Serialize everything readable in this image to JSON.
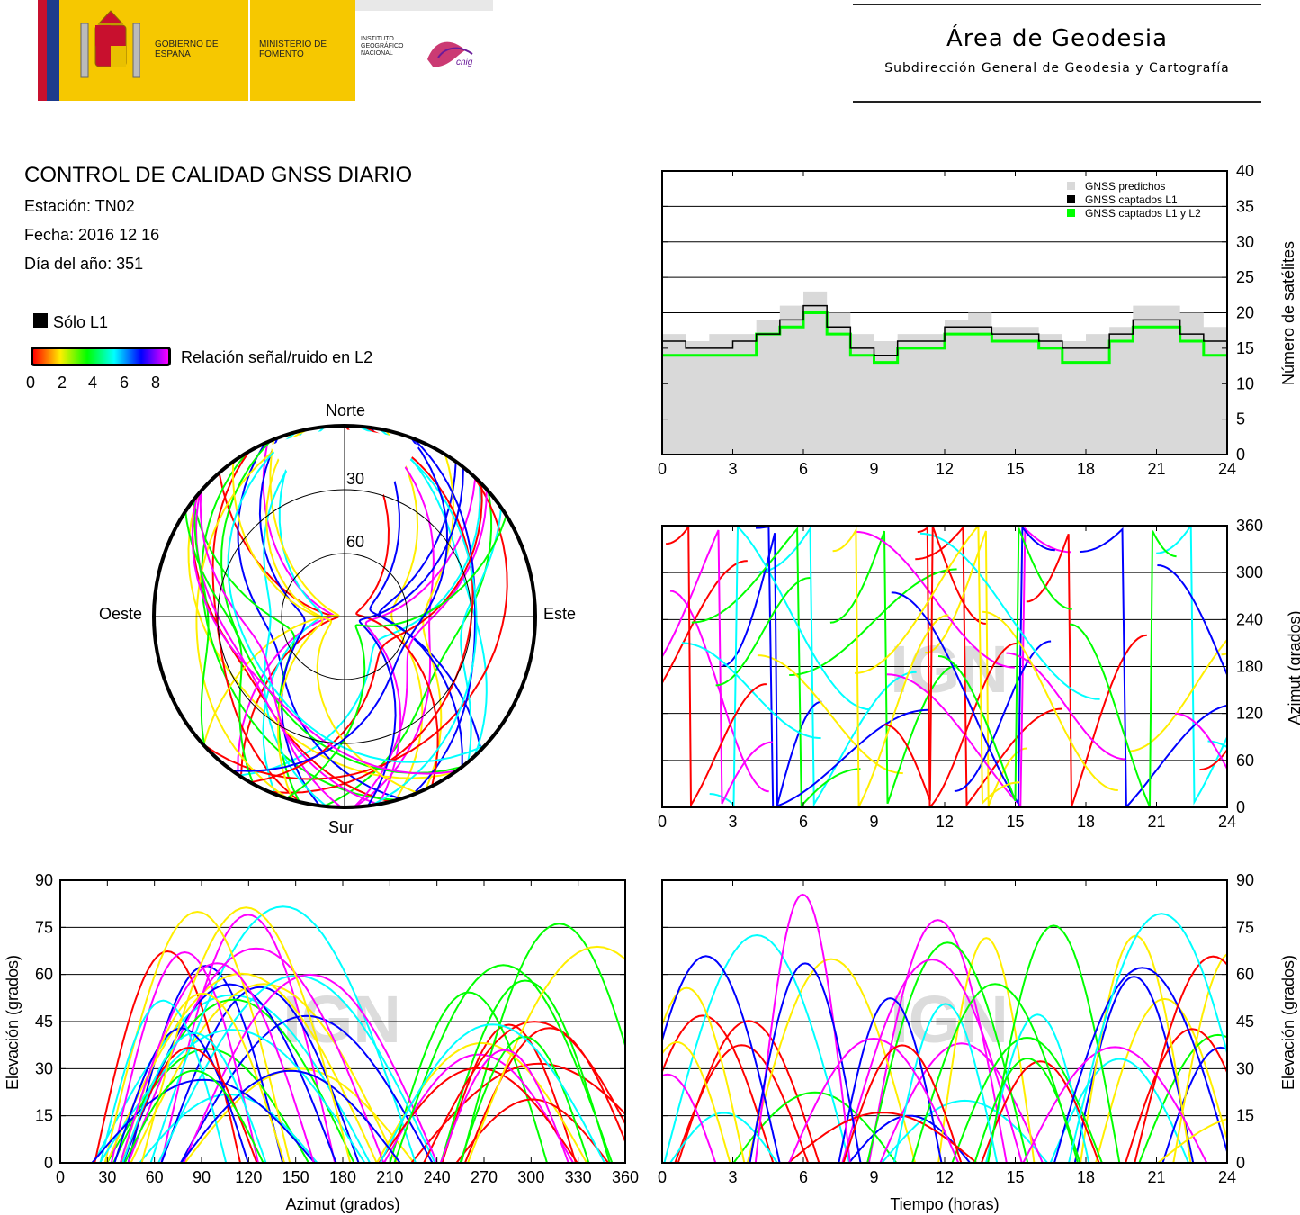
{
  "header": {
    "logo_gobierno": "GOBIERNO DE ESPAÑA",
    "logo_ministerio": "MINISTERIO DE FOMENTO",
    "logo_instituto": "INSTITUTO GEOGRÁFICO NACIONAL",
    "logo_cnig": "cnig",
    "area_title": "Área de Geodesia",
    "area_subtitle": "Subdirección General de Geodesia y Cartografía"
  },
  "report": {
    "title": "CONTROL DE CALIDAD GNSS DIARIO",
    "station": "Estación: TN02",
    "date": "Fecha: 2016 12 16",
    "doy": "Día del año: 351"
  },
  "legend": {
    "solo_l1": "Sólo L1",
    "snr_label": "Relación señal/ruido en L2",
    "snr_ticks": [
      "0",
      "2",
      "4",
      "6",
      "8"
    ]
  },
  "watermark": "IGN",
  "colors": {
    "predicted": "#d9d9d9",
    "captured_l1": "#000000",
    "captured_l1_l2": "#00ff00",
    "snr_scale": [
      "#ff0000",
      "#ffee00",
      "#00ff00",
      "#00ffff",
      "#0000ff",
      "#ff00ff"
    ]
  },
  "chart_data": [
    {
      "type": "polar-skyplot",
      "labels": {
        "north": "Norte",
        "south": "Sur",
        "east": "Este",
        "west": "Oeste"
      },
      "rings": [
        "30",
        "60"
      ]
    },
    {
      "type": "step-area",
      "ylabel": "Número de satélites",
      "xlim": [
        0,
        24
      ],
      "ylim": [
        0,
        40
      ],
      "xticks": [
        "0",
        "3",
        "6",
        "9",
        "12",
        "15",
        "18",
        "21",
        "24"
      ],
      "yticks": [
        "0",
        "5",
        "10",
        "15",
        "20",
        "25",
        "30",
        "35",
        "40"
      ],
      "legend_entries": [
        "GNSS predichos",
        "GNSS captados L1",
        "GNSS captados L1 y L2"
      ],
      "legend_position": "top-right",
      "x": [
        0,
        1,
        2,
        3,
        4,
        5,
        6,
        7,
        8,
        9,
        10,
        11,
        12,
        13,
        14,
        15,
        16,
        17,
        18,
        19,
        20,
        21,
        22,
        23,
        24
      ],
      "series": [
        {
          "name": "GNSS predichos",
          "values": [
            17,
            16,
            17,
            17,
            19,
            21,
            23,
            20,
            17,
            16,
            17,
            17,
            19,
            20,
            18,
            18,
            17,
            16,
            17,
            18,
            21,
            21,
            20,
            18,
            17
          ]
        },
        {
          "name": "GNSS captados L1",
          "values": [
            16,
            15,
            15,
            16,
            17,
            19,
            21,
            18,
            15,
            14,
            16,
            16,
            18,
            18,
            17,
            17,
            16,
            15,
            15,
            17,
            19,
            19,
            17,
            16,
            16
          ]
        },
        {
          "name": "GNSS captados L1 y L2",
          "values": [
            14,
            14,
            14,
            14,
            17,
            18,
            20,
            17,
            14,
            13,
            15,
            15,
            17,
            17,
            16,
            16,
            15,
            13,
            13,
            16,
            18,
            18,
            16,
            14,
            14
          ]
        }
      ]
    },
    {
      "type": "scatter",
      "ylabel": "Azimut (grados)",
      "xlim": [
        0,
        24
      ],
      "ylim": [
        0,
        360
      ],
      "xticks": [
        "0",
        "3",
        "6",
        "9",
        "12",
        "15",
        "18",
        "21",
        "24"
      ],
      "yticks": [
        "0",
        "60",
        "120",
        "180",
        "240",
        "300",
        "360"
      ]
    },
    {
      "type": "scatter",
      "xlabel": "Azimut (grados)",
      "ylabel": "Elevación (grados)",
      "xlim": [
        0,
        360
      ],
      "ylim": [
        0,
        90
      ],
      "xticks": [
        "0",
        "30",
        "60",
        "90",
        "120",
        "150",
        "180",
        "210",
        "240",
        "270",
        "300",
        "330",
        "360"
      ],
      "yticks": [
        "0",
        "15",
        "30",
        "45",
        "60",
        "75",
        "90"
      ]
    },
    {
      "type": "scatter",
      "xlabel": "Tiempo (horas)",
      "ylabel": "Elevación (grados)",
      "xlim": [
        0,
        24
      ],
      "ylim": [
        0,
        90
      ],
      "xticks": [
        "0",
        "3",
        "6",
        "9",
        "12",
        "15",
        "18",
        "21",
        "24"
      ],
      "yticks": [
        "0",
        "15",
        "30",
        "45",
        "60",
        "75",
        "90"
      ]
    }
  ]
}
